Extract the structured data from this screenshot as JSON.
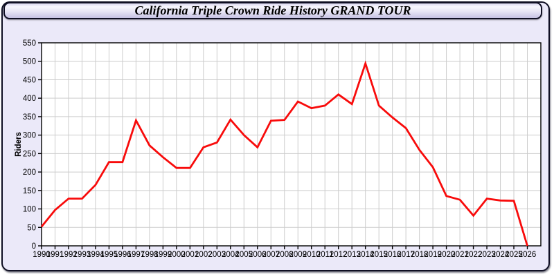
{
  "header": {
    "title": "California Triple Crown Ride History GRAND TOUR"
  },
  "chart_data": {
    "type": "line",
    "title": "California Triple Crown Ride History GRAND TOUR",
    "ylabel": "Riders",
    "xlabel": "",
    "x": [
      1990,
      1991,
      1992,
      1993,
      1994,
      1995,
      1996,
      1997,
      1998,
      1999,
      2000,
      2001,
      2002,
      2003,
      2004,
      2005,
      2006,
      2007,
      2008,
      2009,
      2010,
      2011,
      2012,
      2013,
      2014,
      2015,
      2016,
      2017,
      2018,
      2019,
      2020,
      2021,
      2022,
      2023,
      2024,
      2025,
      2026
    ],
    "series": [
      {
        "name": "Riders",
        "values": [
          52,
          97,
          128,
          128,
          165,
          227,
          227,
          340,
          272,
          240,
          211,
          211,
          267,
          280,
          342,
          300,
          267,
          339,
          341,
          391,
          373,
          380,
          410,
          384,
          494,
          380,
          348,
          319,
          260,
          213,
          135,
          125,
          82,
          128,
          123,
          122,
          0
        ]
      }
    ],
    "ylim": [
      0,
      550
    ],
    "ytick_step": 50,
    "x_extra_right_slot": 1,
    "grid": true,
    "legend": "none",
    "line_color": "#f80b0b",
    "plot_background": "#ffffff",
    "page_background": "#ebe9f9",
    "gridline_color": "#cccccc",
    "axis_color": "#000000",
    "tick_label_color": "#000000"
  }
}
